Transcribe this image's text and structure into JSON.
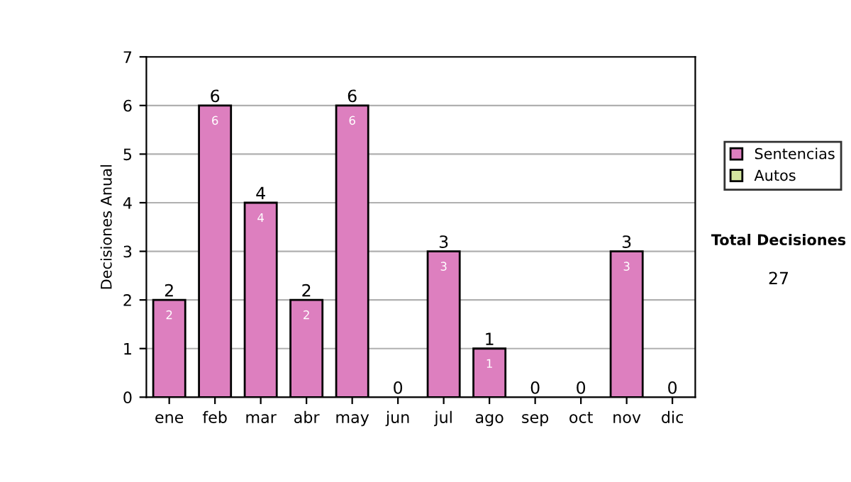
{
  "chart_data": {
    "type": "bar",
    "stacked": true,
    "ylabel": "Decisiones Anual",
    "categories": [
      "ene",
      "feb",
      "mar",
      "abr",
      "may",
      "jun",
      "jul",
      "ago",
      "sep",
      "oct",
      "nov",
      "dic"
    ],
    "series": [
      {
        "name": "Sentencias",
        "color": "#dd7fbf",
        "values": [
          2,
          6,
          4,
          2,
          6,
          0,
          3,
          1,
          0,
          0,
          3,
          0
        ],
        "value_labels": [
          "2",
          "6",
          "4",
          "2",
          "6",
          null,
          "3",
          "1",
          null,
          null,
          "3",
          null
        ]
      },
      {
        "name": "Autos",
        "color": "#d4e6a0",
        "values": [
          0,
          0,
          0,
          0,
          0,
          0,
          0,
          0,
          0,
          0,
          0,
          0
        ]
      }
    ],
    "totals": [
      "2",
      "6",
      "4",
      "2",
      "6",
      "0",
      "3",
      "1",
      "0",
      "0",
      "3",
      "0"
    ],
    "ylim": [
      0,
      7
    ],
    "yticks": [
      0,
      1,
      2,
      3,
      4,
      5,
      6,
      7
    ],
    "grid": "y",
    "legend": "right",
    "annotations": [
      "Total Decisiones",
      "27"
    ]
  }
}
